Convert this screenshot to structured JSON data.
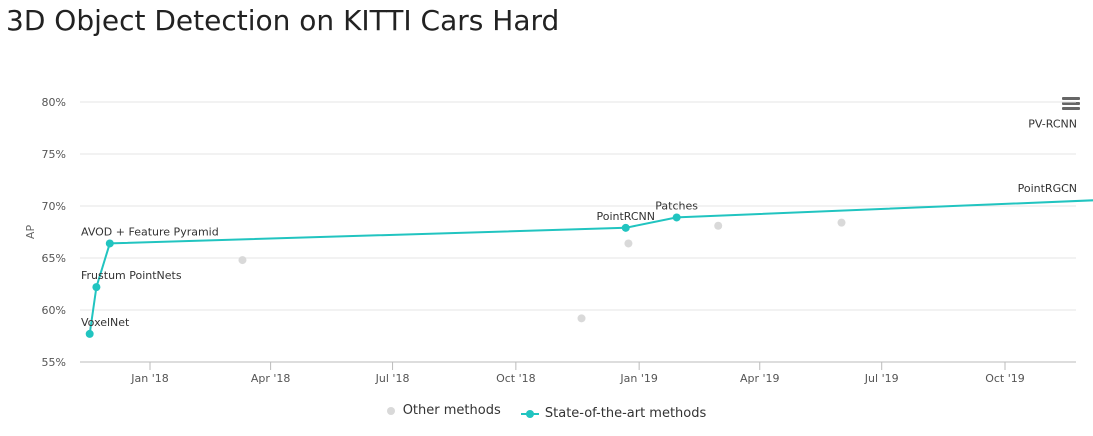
{
  "page": {
    "title": "3D Object Detection on KITTI Cars Hard"
  },
  "menu": {
    "icon": "hamburger-menu-icon"
  },
  "colors": {
    "sota": "#21c4c0",
    "other": "#d9d9d9",
    "grid": "#e6e6e6",
    "axis": "#bbbbbb"
  },
  "legend": {
    "other_label": "Other methods",
    "sota_label": "State-of-the-art methods"
  },
  "chart_data": {
    "type": "scatter",
    "title": "3D Object Detection on KITTI Cars Hard",
    "xlabel": "",
    "ylabel": "AP",
    "ylim": [
      55,
      80
    ],
    "xlim": [
      "2017-11-01",
      "2019-12-31"
    ],
    "y_ticks": [
      {
        "value": 55,
        "label": "55%"
      },
      {
        "value": 60,
        "label": "60%"
      },
      {
        "value": 65,
        "label": "65%"
      },
      {
        "value": 70,
        "label": "70%"
      },
      {
        "value": 75,
        "label": "75%"
      },
      {
        "value": 80,
        "label": "80%"
      }
    ],
    "x_ticks": [
      {
        "date": "2018-01-01",
        "label": "Jan '18"
      },
      {
        "date": "2018-04-01",
        "label": "Apr '18"
      },
      {
        "date": "2018-07-01",
        "label": "Jul '18"
      },
      {
        "date": "2018-10-01",
        "label": "Oct '18"
      },
      {
        "date": "2019-01-01",
        "label": "Jan '19"
      },
      {
        "date": "2019-04-01",
        "label": "Apr '19"
      },
      {
        "date": "2019-07-01",
        "label": "Jul '19"
      },
      {
        "date": "2019-10-01",
        "label": "Oct '19"
      }
    ],
    "grid": true,
    "legend_position": "bottom",
    "series": [
      {
        "name": "Other methods",
        "line": false,
        "points": [
          {
            "x": "2018-03-11",
            "y": 64.8
          },
          {
            "x": "2018-11-19",
            "y": 59.2
          },
          {
            "x": "2018-12-24",
            "y": 66.4
          },
          {
            "x": "2019-03-01",
            "y": 68.1
          },
          {
            "x": "2019-06-01",
            "y": 68.4
          }
        ]
      },
      {
        "name": "State-of-the-art methods",
        "line": true,
        "points": [
          {
            "x": "2017-11-17",
            "y": 57.7,
            "label": "VoxelNet"
          },
          {
            "x": "2017-11-22",
            "y": 62.2,
            "label": "Frustum PointNets"
          },
          {
            "x": "2017-12-02",
            "y": 66.4,
            "label": "AVOD + Feature Pyramid"
          },
          {
            "x": "2018-12-22",
            "y": 67.9,
            "label": "PointRCNN"
          },
          {
            "x": "2019-01-29",
            "y": 68.9,
            "label": "Patches"
          },
          {
            "x": "2019-12-15",
            "y": 70.6,
            "label": "PointRGCN"
          },
          {
            "x": "2019-12-17",
            "y": 76.8,
            "label": "PV-RCNN"
          }
        ]
      }
    ]
  }
}
